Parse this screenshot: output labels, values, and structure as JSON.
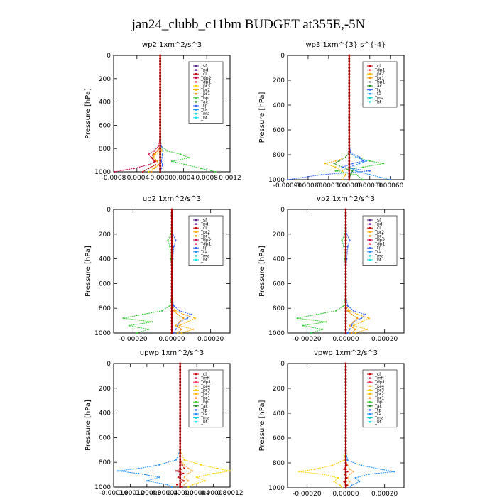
{
  "figure_title": "jan24_clubb_c11bm  BUDGET at355E,-5N",
  "colors": {
    "sf": "#5a1d8a",
    "pd": "#6a0dad",
    "cl": "#cc0000",
    "dp1": "#ff2a5e",
    "dp2": "#cc0044",
    "dp3": "#cc3300",
    "dp4": "#990000",
    "mfl": "#cc2255",
    "pr1": "#ff8c00",
    "pr2": "#ffb000",
    "pr3": "#ffd000",
    "pr4": "#ffaa44",
    "bp": "#33cc33",
    "ac": "#228b22",
    "tp": "#3366ff",
    "ta": "#1e90ff",
    "ma": "#00ced1",
    "bt": "#00e5ee"
  },
  "chart_data": [
    {
      "type": "line",
      "title": "wp2   1xm^2/s^3",
      "ylabel": "Pressure [hPa]",
      "ylim": [
        1000,
        0
      ],
      "xlim": [
        -0.0008,
        0.0012
      ],
      "xticks": [
        -0.0008,
        -0.0004,
        0.0,
        0.0004,
        0.0008,
        0.0012
      ],
      "xtick_labels": [
        "-0.0008",
        "-0.0004",
        "-0.0000",
        "0.0004",
        "0.0008",
        "0.0012"
      ],
      "yticks": [
        0,
        200,
        400,
        600,
        800,
        1000
      ],
      "legend": [
        "_sf",
        "_pd",
        "_cl",
        "_dp2",
        "_dp1",
        "_pr3",
        "_pr2",
        "_pr1",
        "_bp",
        "_ac",
        "_tp",
        "_ta",
        "_ma",
        "_bt"
      ],
      "pressure": [
        0,
        100,
        200,
        300,
        400,
        500,
        600,
        700,
        780,
        820,
        850,
        880,
        910,
        940,
        970,
        1000
      ],
      "series": [
        {
          "name": "_dp1",
          "color": "#cc0044",
          "values": [
            0,
            0,
            0,
            0,
            0,
            0,
            0,
            0,
            -3e-05,
            -0.0001,
            -0.0002,
            -0.00015,
            -8e-05,
            -0.0002,
            -0.00045,
            -0.00078
          ]
        },
        {
          "name": "_cl",
          "color": "#cc0000",
          "values": [
            0,
            0,
            0,
            0,
            0,
            0,
            0,
            0,
            0,
            -5e-05,
            -0.00012,
            -0.00015,
            -0.0001,
            -8e-05,
            -0.0002,
            -0.0003
          ]
        },
        {
          "name": "_pr3",
          "color": "#ffd000",
          "values": [
            0,
            0,
            0,
            0,
            0,
            0,
            0,
            0,
            0,
            3e-05,
            -8e-05,
            -0.0001,
            -5e-05,
            -3e-05,
            -0.00012,
            -0.0002
          ]
        },
        {
          "name": "_pr1",
          "color": "#ff8c00",
          "values": [
            0,
            0,
            0,
            0,
            0,
            0,
            0,
            0,
            0,
            -4e-05,
            -0.0001,
            -0.00012,
            -5e-05,
            -2e-05,
            -0.0001,
            -0.00015
          ]
        },
        {
          "name": "_bp",
          "color": "#33cc33",
          "values": [
            0,
            0,
            0,
            0,
            0,
            0,
            0,
            0,
            2e-05,
            0.00012,
            0.00035,
            0.0005,
            0.0002,
            0.00045,
            0.0007,
            0.00095
          ]
        },
        {
          "name": "_tp",
          "color": "#3366ff",
          "values": [
            0,
            0,
            0,
            0,
            0,
            0,
            0,
            0,
            2e-05,
            5e-05,
            4e-05,
            3e-05,
            2e-05,
            4e-05,
            2e-05,
            1e-05
          ]
        },
        {
          "name": "_pd",
          "color": "#6a0dad",
          "values": [
            0,
            0,
            0,
            0,
            0,
            0,
            0,
            0,
            0,
            0,
            0,
            0,
            0,
            0,
            0,
            0
          ]
        }
      ]
    },
    {
      "type": "line",
      "title": "wp3   1xm^{3} s^{-4}",
      "ylabel": "Pressure [hPa]",
      "ylim": [
        1000,
        0
      ],
      "xlim": [
        -0.0009,
        0.0008
      ],
      "xticks": [
        -0.0009,
        -0.0006,
        -0.0003,
        0.0,
        0.0003,
        0.0006
      ],
      "xtick_labels": [
        "-0.00090",
        "-0.00060",
        "-0.00030",
        "0.00000",
        "0.00030",
        "0.00060"
      ],
      "yticks": [
        0,
        200,
        400,
        600,
        800,
        1000
      ],
      "legend": [
        "_cl",
        "_dp1",
        "_pr2",
        "_pr1",
        "_bp1",
        "_ac",
        "_tp",
        "_ta",
        "_ma",
        "_bt"
      ],
      "pressure": [
        0,
        100,
        200,
        300,
        400,
        500,
        600,
        700,
        780,
        820,
        850,
        870,
        900,
        930,
        960,
        1000
      ],
      "series": [
        {
          "name": "_pr1",
          "color": "#ffb000",
          "values": [
            0,
            0,
            0,
            0,
            0,
            0,
            0,
            0,
            0,
            -5e-05,
            -0.0002,
            -0.00035,
            -0.0002,
            -0.0001,
            -5e-05,
            -0.0001
          ]
        },
        {
          "name": "_bp1",
          "color": "#33cc33",
          "values": [
            0,
            0,
            0,
            0,
            0,
            0,
            0,
            0,
            0,
            0.0001,
            0.0003,
            0.0005,
            0.0002,
            -0.0002,
            0.0001,
            0.0002
          ]
        },
        {
          "name": "_ac",
          "color": "#228b22",
          "values": [
            0,
            0,
            0,
            0,
            0,
            0,
            0,
            0,
            0,
            -5e-05,
            -0.00015,
            -0.00022,
            -0.0001,
            5e-05,
            2e-05,
            0
          ]
        },
        {
          "name": "_tp",
          "color": "#3366ff",
          "values": [
            0,
            0,
            0,
            0,
            0,
            0,
            0,
            0,
            2e-05,
            0.00015,
            0.0002,
            5e-05,
            -0.0001,
            0.0003,
            -0.0004,
            -0.0009
          ]
        },
        {
          "name": "_ta",
          "color": "#1e90ff",
          "values": [
            0,
            0,
            0,
            0,
            0,
            0,
            0,
            0,
            0,
            0.0001,
            0.00025,
            0.00015,
            0,
            0.0001,
            0.0003,
            0.0006
          ]
        },
        {
          "name": "_cl",
          "color": "#cc0000",
          "values": [
            0,
            0,
            0,
            0,
            0,
            0,
            0,
            0,
            0,
            0,
            0,
            0,
            0,
            0,
            0,
            0
          ]
        }
      ]
    },
    {
      "type": "line",
      "title": "up2   1xm^2/s^3",
      "ylabel": "Pressure [hPa]",
      "ylim": [
        1000,
        0
      ],
      "xlim": [
        -0.0003,
        0.0003
      ],
      "xticks": [
        -0.0002,
        0.0,
        0.0002
      ],
      "xtick_labels": [
        "-0.00020",
        "0.00000",
        "0.00020"
      ],
      "yticks": [
        0,
        200,
        400,
        600,
        800,
        1000
      ],
      "legend": [
        "_sf",
        "_pd",
        "_cl",
        "_pr2",
        "_pr1",
        "_dp2",
        "_dp1",
        "_tp",
        "_ta",
        "_ma",
        "_bt"
      ],
      "pressure": [
        0,
        100,
        200,
        250,
        300,
        400,
        500,
        600,
        700,
        780,
        820,
        850,
        880,
        910,
        940,
        970,
        1000
      ],
      "series": [
        {
          "name": "_dp2",
          "color": "#33cc33",
          "values": [
            0,
            0,
            -5e-06,
            -2e-05,
            -1e-05,
            -5e-06,
            0,
            0,
            0,
            -1e-05,
            -5e-05,
            -0.00015,
            -0.00025,
            -0.0001,
            -0.00022,
            -0.00012,
            -0.00018
          ]
        },
        {
          "name": "_tp",
          "color": "#3366ff",
          "values": [
            0,
            0,
            5e-06,
            2e-05,
            1e-05,
            5e-06,
            0,
            0,
            0,
            1e-05,
            4e-05,
            0.0001,
            8e-05,
            4e-05,
            3e-05,
            2e-05,
            1e-05
          ]
        },
        {
          "name": "_pr1",
          "color": "#ffb000",
          "values": [
            0,
            0,
            0,
            0,
            0,
            0,
            0,
            0,
            0,
            0,
            2e-05,
            6e-05,
            0.00012,
            8e-05,
            4e-05,
            0.00011,
            5e-05
          ]
        },
        {
          "name": "_pr2",
          "color": "#ff8c00",
          "values": [
            0,
            0,
            0,
            0,
            0,
            0,
            0,
            0,
            0,
            0,
            1e-05,
            3e-05,
            6e-05,
            4e-05,
            2e-05,
            5e-05,
            3e-05
          ]
        },
        {
          "name": "_cl",
          "color": "#cc0000",
          "values": [
            0,
            0,
            0,
            0,
            0,
            0,
            0,
            0,
            0,
            0,
            0,
            0,
            0,
            0,
            0,
            0,
            0
          ]
        }
      ]
    },
    {
      "type": "line",
      "title": "vp2   1xm^2/s^3",
      "ylabel": "Pressure [hPa]",
      "ylim": [
        1000,
        0
      ],
      "xlim": [
        -0.0003,
        0.0003
      ],
      "xticks": [
        -0.0002,
        0.0,
        0.0002
      ],
      "xtick_labels": [
        "-0.00020",
        "0.00000",
        "0.00020"
      ],
      "yticks": [
        0,
        200,
        400,
        600,
        800,
        1000
      ],
      "legend": [
        "_sf",
        "_pd",
        "_cl",
        "_pr2",
        "_pr1",
        "_dp2",
        "_dp1",
        "_tp",
        "_ta",
        "_ma",
        "_bt"
      ],
      "pressure": [
        0,
        100,
        200,
        250,
        300,
        400,
        500,
        600,
        700,
        780,
        820,
        850,
        880,
        910,
        940,
        970,
        1000
      ],
      "series": [
        {
          "name": "_dp2",
          "color": "#33cc33",
          "values": [
            0,
            0,
            -5e-06,
            -2e-05,
            -1e-05,
            -5e-06,
            0,
            0,
            0,
            -1e-05,
            -5e-05,
            -0.00015,
            -0.00025,
            -0.0001,
            -0.00022,
            -0.00012,
            -0.00018
          ]
        },
        {
          "name": "_tp",
          "color": "#3366ff",
          "values": [
            0,
            0,
            5e-06,
            2e-05,
            1e-05,
            5e-06,
            0,
            0,
            0,
            1e-05,
            4e-05,
            0.0001,
            8e-05,
            4e-05,
            3e-05,
            2e-05,
            1e-05
          ]
        },
        {
          "name": "_pr1",
          "color": "#ffb000",
          "values": [
            0,
            0,
            0,
            0,
            0,
            0,
            0,
            0,
            0,
            0,
            2e-05,
            6e-05,
            0.00012,
            8e-05,
            4e-05,
            0.00011,
            5e-05
          ]
        },
        {
          "name": "_pr2",
          "color": "#ff8c00",
          "values": [
            0,
            0,
            0,
            0,
            0,
            0,
            0,
            0,
            0,
            0,
            1e-05,
            3e-05,
            6e-05,
            4e-05,
            2e-05,
            5e-05,
            3e-05
          ]
        },
        {
          "name": "_cl",
          "color": "#cc0000",
          "values": [
            0,
            0,
            0,
            0,
            0,
            0,
            0,
            0,
            0,
            0,
            0,
            0,
            0,
            0,
            0,
            0,
            0
          ]
        }
      ]
    },
    {
      "type": "line",
      "title": "upwp   1xm^2/s^3",
      "ylabel": "Pressure [hPa]",
      "ylim": [
        1000,
        0
      ],
      "xlim": [
        -0.00016,
        0.00012
      ],
      "xticks": [
        -0.00016,
        -0.00012,
        -8e-05,
        -4e-05,
        0.0,
        4e-05,
        8e-05,
        0.00012
      ],
      "xtick_labels": [
        "-0.00016",
        "-0.00012",
        "-0.00008",
        "-0.00004",
        "0.00000",
        "0.00004",
        "0.00008",
        "0.00012"
      ],
      "yticks": [
        0,
        200,
        400,
        600,
        800,
        1000
      ],
      "legend": [
        "_cl",
        "_mfl",
        "_dp1",
        "_pr4",
        "_pr3",
        "_pr2",
        "_pr1",
        "_bp",
        "_ac",
        "_tp",
        "_ta",
        "_ma",
        "_bt"
      ],
      "pressure": [
        0,
        100,
        200,
        300,
        400,
        500,
        600,
        700,
        780,
        820,
        850,
        870,
        890,
        920,
        950,
        980,
        1000
      ],
      "series": [
        {
          "name": "_tp",
          "color": "#1e90ff",
          "values": [
            0,
            0,
            0,
            0,
            0,
            0,
            0,
            0,
            -1e-05,
            -5e-05,
            -0.0001,
            -0.00015,
            -0.0001,
            -5e-05,
            -8e-05,
            -3e-05,
            -2e-05
          ]
        },
        {
          "name": "_pr1",
          "color": "#ffd000",
          "values": [
            0,
            0,
            0,
            0,
            0,
            0,
            0,
            0,
            1e-05,
            5e-05,
            9e-05,
            0.00012,
            8e-05,
            4e-05,
            6e-05,
            3e-05,
            2e-05
          ]
        },
        {
          "name": "_pr2",
          "color": "#ffaa44",
          "values": [
            0,
            0,
            0,
            0,
            0,
            0,
            0,
            0,
            0,
            1e-05,
            2e-05,
            3e-05,
            2e-05,
            1e-05,
            2e-05,
            1e-05,
            0
          ]
        },
        {
          "name": "_dp1",
          "color": "#cc0000",
          "values": [
            0,
            0,
            0,
            0,
            0,
            0,
            0,
            0,
            0,
            5e-06,
            1e-05,
            -1e-05,
            8e-06,
            -5e-06,
            1e-05,
            -8e-06,
            5e-06
          ]
        },
        {
          "name": "_cl",
          "color": "#6a0dad",
          "values": [
            0,
            0,
            0,
            0,
            0,
            0,
            0,
            0,
            0,
            0,
            0,
            0,
            0,
            0,
            0,
            0,
            0
          ]
        }
      ]
    },
    {
      "type": "line",
      "title": "vpwp   1xm^2/s^3",
      "ylabel": "Pressure [hPa]",
      "ylim": [
        1000,
        0
      ],
      "xlim": [
        -0.0003,
        0.0003
      ],
      "xticks": [
        -0.0002,
        0.0,
        0.0002
      ],
      "xtick_labels": [
        "-0.00020",
        "0.00000",
        "0.00020"
      ],
      "yticks": [
        0,
        200,
        400,
        600,
        800,
        1000
      ],
      "legend": [
        "_cl",
        "_mfl",
        "_dp1",
        "_pr4",
        "_pr3",
        "_pr2",
        "_pr1",
        "_bp",
        "_ac",
        "_tp",
        "_ta",
        "_ma",
        "_bt"
      ],
      "pressure": [
        0,
        100,
        200,
        300,
        400,
        500,
        600,
        700,
        780,
        820,
        850,
        870,
        890,
        920,
        950,
        980,
        1000
      ],
      "series": [
        {
          "name": "_tp",
          "color": "#1e90ff",
          "values": [
            0,
            0,
            0,
            0,
            0,
            0,
            0,
            0,
            1e-05,
            8e-05,
            0.00018,
            0.00025,
            0.00012,
            5e-05,
            7e-05,
            3e-05,
            2e-05
          ]
        },
        {
          "name": "_pr1",
          "color": "#ffd000",
          "values": [
            0,
            0,
            0,
            0,
            0,
            0,
            0,
            0,
            -1e-05,
            -7e-05,
            -0.00016,
            -0.00024,
            -0.00012,
            -4e-05,
            -6e-05,
            -3e-05,
            -2e-05
          ]
        },
        {
          "name": "_pr2",
          "color": "#ffaa44",
          "values": [
            0,
            0,
            0,
            0,
            0,
            0,
            0,
            0,
            0,
            1e-05,
            2e-05,
            4e-05,
            2e-05,
            1e-05,
            2e-05,
            1e-05,
            0
          ]
        },
        {
          "name": "_dp1",
          "color": "#cc0000",
          "values": [
            0,
            0,
            0,
            0,
            0,
            0,
            0,
            0,
            0,
            5e-06,
            -1e-05,
            1e-05,
            -8e-06,
            5e-06,
            -1e-05,
            8e-06,
            0
          ]
        },
        {
          "name": "_cl",
          "color": "#6a0dad",
          "values": [
            0,
            0,
            0,
            0,
            0,
            0,
            0,
            0,
            0,
            0,
            0,
            0,
            0,
            0,
            0,
            0,
            0
          ]
        }
      ]
    }
  ]
}
